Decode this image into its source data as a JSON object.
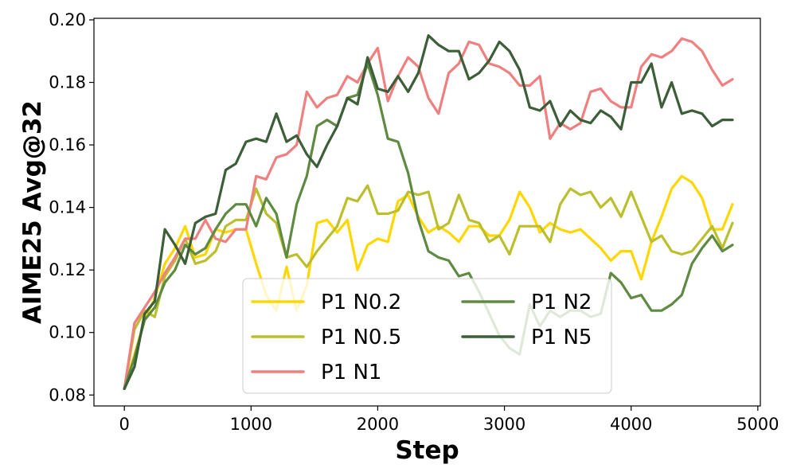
{
  "chart_data": {
    "type": "line",
    "xlabel": "Step",
    "ylabel": "AIME25 Avg@32",
    "xlim": [
      -240,
      5020
    ],
    "ylim": [
      0.0765,
      0.2005
    ],
    "xticks": [
      0,
      1000,
      2000,
      3000,
      4000,
      5000
    ],
    "yticks": [
      0.08,
      0.1,
      0.12,
      0.14,
      0.16,
      0.18,
      0.2
    ],
    "xtick_labels": [
      "0",
      "1000",
      "2000",
      "3000",
      "4000",
      "5000"
    ],
    "ytick_labels": [
      "0.08",
      "0.10",
      "0.12",
      "0.14",
      "0.16",
      "0.18",
      "0.20"
    ],
    "grid": false,
    "legend_location": "lower center",
    "series": [
      {
        "name": "P1 N0.2",
        "color": "#FFD700",
        "x": [
          0,
          80,
          160,
          240,
          320,
          400,
          480,
          560,
          640,
          720,
          800,
          880,
          960,
          1040,
          1120,
          1200,
          1280,
          1360,
          1440,
          1520,
          1600,
          1680,
          1760,
          1840,
          1920,
          2000,
          2080,
          2160,
          2240,
          2320,
          2400,
          2480,
          2560,
          2640,
          2720,
          2800,
          2880,
          2960,
          3040,
          3120,
          3200,
          3280,
          3360,
          3440,
          3520,
          3600,
          3680,
          3760,
          3840,
          3920,
          4000,
          4080,
          4160,
          4240,
          4320,
          4400,
          4480,
          4560,
          4640,
          4720,
          4800
        ],
        "values": [
          0.082,
          0.093,
          0.104,
          0.111,
          0.122,
          0.127,
          0.134,
          0.124,
          0.125,
          0.133,
          0.132,
          0.133,
          0.133,
          0.122,
          0.112,
          0.107,
          0.121,
          0.107,
          0.115,
          0.135,
          0.136,
          0.132,
          0.136,
          0.12,
          0.128,
          0.13,
          0.129,
          0.142,
          0.144,
          0.137,
          0.132,
          0.134,
          0.132,
          0.129,
          0.134,
          0.134,
          0.131,
          0.131,
          0.136,
          0.145,
          0.14,
          0.132,
          0.135,
          0.133,
          0.132,
          0.133,
          0.13,
          0.127,
          0.123,
          0.126,
          0.126,
          0.117,
          0.129,
          0.137,
          0.146,
          0.15,
          0.148,
          0.143,
          0.133,
          0.133,
          0.141
        ]
      },
      {
        "name": "P1 N0.5",
        "color": "#BBBF2E",
        "x": [
          0,
          80,
          160,
          240,
          320,
          400,
          480,
          560,
          640,
          720,
          800,
          880,
          960,
          1040,
          1120,
          1200,
          1280,
          1360,
          1440,
          1520,
          1600,
          1680,
          1760,
          1840,
          1920,
          2000,
          2080,
          2160,
          2240,
          2320,
          2400,
          2480,
          2560,
          2640,
          2720,
          2800,
          2880,
          2960,
          3040,
          3120,
          3200,
          3280,
          3360,
          3440,
          3520,
          3600,
          3680,
          3760,
          3840,
          3920,
          4000,
          4080,
          4160,
          4240,
          4320,
          4400,
          4480,
          4560,
          4640,
          4720,
          4800
        ],
        "values": [
          0.082,
          0.101,
          0.107,
          0.105,
          0.118,
          0.123,
          0.13,
          0.122,
          0.123,
          0.126,
          0.134,
          0.136,
          0.136,
          0.146,
          0.138,
          0.135,
          0.124,
          0.125,
          0.121,
          0.126,
          0.13,
          0.134,
          0.143,
          0.142,
          0.147,
          0.138,
          0.138,
          0.139,
          0.145,
          0.144,
          0.145,
          0.133,
          0.135,
          0.144,
          0.136,
          0.135,
          0.129,
          0.131,
          0.125,
          0.134,
          0.134,
          0.134,
          0.129,
          0.141,
          0.146,
          0.144,
          0.145,
          0.14,
          0.143,
          0.137,
          0.145,
          0.137,
          0.129,
          0.131,
          0.126,
          0.125,
          0.126,
          0.13,
          0.134,
          0.127,
          0.135
        ]
      },
      {
        "name": "P1 N1",
        "color": "#F08080",
        "x": [
          0,
          80,
          160,
          240,
          320,
          400,
          480,
          560,
          640,
          720,
          800,
          880,
          960,
          1040,
          1120,
          1200,
          1280,
          1360,
          1440,
          1520,
          1600,
          1680,
          1760,
          1840,
          1920,
          2000,
          2080,
          2160,
          2240,
          2320,
          2400,
          2480,
          2560,
          2640,
          2720,
          2800,
          2880,
          2960,
          3040,
          3120,
          3200,
          3280,
          3360,
          3440,
          3520,
          3600,
          3680,
          3760,
          3840,
          3920,
          4000,
          4080,
          4160,
          4240,
          4320,
          4400,
          4480,
          4560,
          4640,
          4720,
          4800
        ],
        "values": [
          0.082,
          0.103,
          0.108,
          0.113,
          0.119,
          0.124,
          0.13,
          0.13,
          0.136,
          0.13,
          0.129,
          0.133,
          0.133,
          0.15,
          0.149,
          0.156,
          0.157,
          0.16,
          0.177,
          0.172,
          0.175,
          0.176,
          0.182,
          0.18,
          0.186,
          0.191,
          0.174,
          0.182,
          0.188,
          0.185,
          0.175,
          0.17,
          0.183,
          0.186,
          0.193,
          0.192,
          0.186,
          0.185,
          0.183,
          0.179,
          0.179,
          0.182,
          0.162,
          0.167,
          0.165,
          0.167,
          0.177,
          0.178,
          0.174,
          0.172,
          0.172,
          0.185,
          0.189,
          0.188,
          0.19,
          0.194,
          0.193,
          0.19,
          0.184,
          0.179,
          0.181
        ]
      },
      {
        "name": "P1 N2",
        "color": "#5E8B41",
        "x": [
          0,
          80,
          160,
          240,
          320,
          400,
          480,
          560,
          640,
          720,
          800,
          880,
          960,
          1040,
          1120,
          1200,
          1280,
          1360,
          1440,
          1520,
          1600,
          1680,
          1760,
          1840,
          1920,
          2000,
          2080,
          2160,
          2240,
          2320,
          2400,
          2480,
          2560,
          2640,
          2720,
          2800,
          2880,
          2960,
          3040,
          3120,
          3200,
          3280,
          3360,
          3440,
          3520,
          3600,
          3680,
          3760,
          3840,
          3920,
          4000,
          4080,
          4160,
          4240,
          4320,
          4400,
          4480,
          4560,
          4640,
          4720,
          4800
        ],
        "values": [
          0.082,
          0.092,
          0.104,
          0.108,
          0.116,
          0.12,
          0.128,
          0.125,
          0.127,
          0.133,
          0.138,
          0.141,
          0.141,
          0.134,
          0.143,
          0.138,
          0.124,
          0.141,
          0.15,
          0.166,
          0.168,
          0.166,
          0.175,
          0.176,
          0.186,
          0.176,
          0.162,
          0.161,
          0.151,
          0.136,
          0.126,
          0.124,
          0.123,
          0.118,
          0.119,
          0.113,
          0.106,
          0.099,
          0.095,
          0.093,
          0.109,
          0.102,
          0.107,
          0.105,
          0.107,
          0.107,
          0.105,
          0.106,
          0.119,
          0.116,
          0.111,
          0.112,
          0.107,
          0.107,
          0.109,
          0.112,
          0.122,
          0.127,
          0.131,
          0.126,
          0.128
        ]
      },
      {
        "name": "P1 N5",
        "color": "#3C5E38",
        "x": [
          0,
          80,
          160,
          240,
          320,
          400,
          480,
          560,
          640,
          720,
          800,
          880,
          960,
          1040,
          1120,
          1200,
          1280,
          1360,
          1440,
          1520,
          1600,
          1680,
          1760,
          1840,
          1920,
          2000,
          2080,
          2160,
          2240,
          2320,
          2400,
          2480,
          2560,
          2640,
          2720,
          2800,
          2880,
          2960,
          3040,
          3120,
          3200,
          3280,
          3360,
          3440,
          3520,
          3600,
          3680,
          3760,
          3840,
          3920,
          4000,
          4080,
          4160,
          4240,
          4320,
          4400,
          4480,
          4560,
          4640,
          4720,
          4800
        ],
        "values": [
          0.082,
          0.089,
          0.106,
          0.11,
          0.133,
          0.128,
          0.122,
          0.135,
          0.137,
          0.138,
          0.152,
          0.154,
          0.161,
          0.162,
          0.161,
          0.17,
          0.161,
          0.163,
          0.157,
          0.153,
          0.16,
          0.166,
          0.175,
          0.173,
          0.188,
          0.178,
          0.177,
          0.182,
          0.177,
          0.183,
          0.195,
          0.192,
          0.19,
          0.19,
          0.181,
          0.183,
          0.187,
          0.193,
          0.19,
          0.184,
          0.172,
          0.171,
          0.174,
          0.166,
          0.171,
          0.168,
          0.167,
          0.171,
          0.169,
          0.165,
          0.18,
          0.18,
          0.186,
          0.172,
          0.18,
          0.17,
          0.171,
          0.17,
          0.166,
          0.168,
          0.168
        ]
      }
    ]
  }
}
